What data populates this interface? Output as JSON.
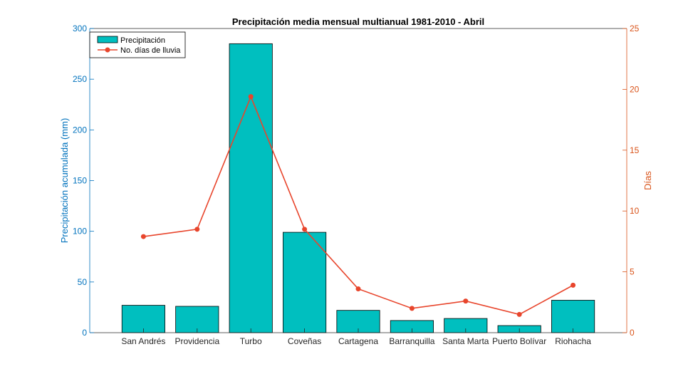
{
  "chart_data": {
    "type": "bar",
    "title": "Precipitación media mensual multianual 1981-2010 - Abril",
    "categories": [
      "San Andrés",
      "Providencia",
      "Turbo",
      "Coveñas",
      "Cartagena",
      "Barranquilla",
      "Santa Marta",
      "Puerto Bolívar",
      "Riohacha"
    ],
    "series": [
      {
        "name": "Precipitación",
        "type": "bar",
        "axis": "left",
        "values": [
          27,
          26,
          285,
          99,
          22,
          12,
          14,
          7,
          32
        ]
      },
      {
        "name": "No. días de lluvia",
        "type": "line",
        "axis": "right",
        "values": [
          7.9,
          8.5,
          19.4,
          8.5,
          3.6,
          2.0,
          2.6,
          1.5,
          3.9
        ]
      }
    ],
    "ylabel_left": "Precipitación acumulada (mm)",
    "ylabel_right": "Días",
    "ylim_left": [
      0,
      300
    ],
    "ylim_right": [
      0,
      25
    ],
    "yticks_left": [
      0,
      50,
      100,
      150,
      200,
      250,
      300
    ],
    "yticks_right": [
      0,
      5,
      10,
      15,
      20,
      25
    ],
    "legend_position": "top-left",
    "grid": false,
    "colors": {
      "bar_fill": "#00BFBF",
      "bar_edge": "#000000",
      "line": "#E8452C",
      "left_axis": "#0072BD",
      "right_axis": "#D95319"
    }
  }
}
